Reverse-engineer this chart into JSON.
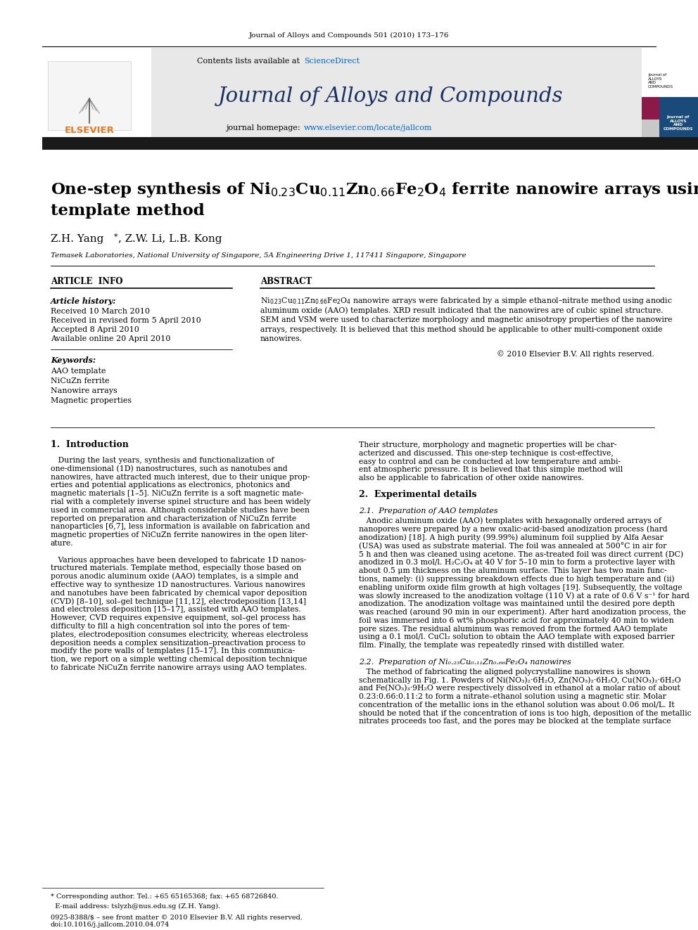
{
  "journal_ref": "Journal of Alloys and Compounds 501 (2010) 173–176",
  "contents_text": "Contents lists available at",
  "sciencedirect": "ScienceDirect",
  "journal_name": "Journal of Alloys and Compounds",
  "journal_homepage_prefix": "journal homepage: ",
  "journal_homepage_link": "www.elsevier.com/locate/jallcom",
  "title_line1": "One-step synthesis of Ni$_{0.23}$Cu$_{0.11}$Zn$_{0.66}$Fe$_{2}$O$_{4}$ ferrite nanowire arrays using a",
  "title_line2": "template method",
  "authors": "Z.H. Yang*, Z.W. Li, L.B. Kong",
  "affiliation": "Temasek Laboratories, National University of Singapore, 5A Engineering Drive 1, 117411 Singapore, Singapore",
  "article_info_header": "ARTICLE  INFO",
  "abstract_header": "ABSTRACT",
  "article_history_label": "Article history:",
  "received1": "Received 10 March 2010",
  "received2": "Received in revised form 5 April 2010",
  "accepted": "Accepted 8 April 2010",
  "available": "Available online 20 April 2010",
  "keywords_label": "Keywords:",
  "keyword1": "AAO template",
  "keyword2": "NiCuZn ferrite",
  "keyword3": "Nanowire arrays",
  "keyword4": "Magnetic properties",
  "copyright": "© 2010 Elsevier B.V. All rights reserved.",
  "section1_header": "1.  Introduction",
  "footer_note1": "* Corresponding author. Tel.: +65 65165368; fax: +65 68726840.",
  "footer_note2": "  E-mail address: tslyzh@nus.edu.sg (Z.H. Yang).",
  "issn": "0925-8388/$ – see front matter © 2010 Elsevier B.V. All rights reserved.",
  "doi": "doi:10.1016/j.jallcom.2010.04.074",
  "bg_color": "#ffffff",
  "header_bg": "#e8e8e8",
  "elsevier_color": "#e87722",
  "sciencedirect_color": "#0066cc",
  "link_color": "#0066cc",
  "text_color": "#000000",
  "dark_bar_color": "#1a1a1a",
  "abstract_lines": [
    "Ni$_{0.23}$Cu$_{0.11}$Zn$_{0.66}$Fe$_2$O$_4$ nanowire arrays were fabricated by a simple ethanol–nitrate method using anodic",
    "aluminum oxide (AAO) templates. XRD result indicated that the nanowires are of cubic spinel structure.",
    "SEM and VSM were used to characterize morphology and magnetic anisotropy properties of the nanowire",
    "arrays, respectively. It is believed that this method should be applicable to other multi-component oxide",
    "nanowires."
  ],
  "col1_text": [
    "   During the last years, synthesis and functionalization of",
    "one-dimensional (1D) nanostructures, such as nanotubes and",
    "nanowires, have attracted much interest, due to their unique prop-",
    "erties and potential applications as electronics, photonics and",
    "magnetic materials [1–5]. NiCuZn ferrite is a soft magnetic mate-",
    "rial with a completely inverse spinel structure and has been widely",
    "used in commercial area. Although considerable studies have been",
    "reported on preparation and characterization of NiCuZn ferrite",
    "nanoparticles [6,7], less information is available on fabrication and",
    "magnetic properties of NiCuZn ferrite nanowires in the open liter-",
    "ature.",
    "",
    "   Various approaches have been developed to fabricate 1D nanos-",
    "tructured materials. Template method, especially those based on",
    "porous anodic aluminum oxide (AAO) templates, is a simple and",
    "effective way to synthesize 1D nanostructures. Various nanowires",
    "and nanotubes have been fabricated by chemical vapor deposition",
    "(CVD) [8–10], sol–gel technique [11,12], electrodeposition [13,14]",
    "and electroless deposition [15–17], assisted with AAO templates.",
    "However, CVD requires expensive equipment, sol–gel process has",
    "difficulty to fill a high concentration sol into the pores of tem-",
    "plates, electrodeposition consumes electricity, whereas electroless",
    "deposition needs a complex sensitization–preactivation process to",
    "modify the pore walls of templates [15–17]. In this communica-",
    "tion, we report on a simple wetting chemical deposition technique",
    "to fabricate NiCuZn ferrite nanowire arrays using AAO templates."
  ],
  "col2_intro": [
    "Their structure, morphology and magnetic properties will be char-",
    "acterized and discussed. This one-step technique is cost-effective,",
    "easy to control and can be conducted at low temperature and ambi-",
    "ent atmospheric pressure. It is believed that this simple method will",
    "also be applicable to fabrication of other oxide nanowires."
  ],
  "section2_header": "2.  Experimental details",
  "section21_header": "2.1.  Preparation of AAO templates",
  "col2_sec21": [
    "   Anodic aluminum oxide (AAO) templates with hexagonally ordered arrays of",
    "nanopores were prepared by a new oxalic-acid-based anodization process (hard",
    "anodization) [18]. A high purity (99.99%) aluminum foil supplied by Alfa Aesar",
    "(USA) was used as substrate material. The foil was annealed at 500°C in air for",
    "5 h and then was cleaned using acetone. The as-treated foil was direct current (DC)",
    "anodized in 0.3 mol/l. H₂C₂O₄ at 40 V for 5–10 min to form a protective layer with",
    "about 0.5 μm thickness on the aluminum surface. This layer has two main func-",
    "tions, namely: (i) suppressing breakdown effects due to high temperature and (ii)",
    "enabling uniform oxide film growth at high voltages [19]. Subsequently, the voltage",
    "was slowly increased to the anodization voltage (110 V) at a rate of 0.6 V s⁻¹ for hard",
    "anodization. The anodization voltage was maintained until the desired pore depth",
    "was reached (around 90 min in our experiment). After hard anodization process, the",
    "foil was immersed into 6 wt% phosphoric acid for approximately 40 min to widen",
    "pore sizes. The residual aluminum was removed from the formed AAO template",
    "using a 0.1 mol/l. CuCl₂ solution to obtain the AAO template with exposed barrier",
    "film. Finally, the template was repeatedly rinsed with distilled water."
  ],
  "section22_header": "2.2.  Preparation of Ni₀.₂₃Cu₀.₁₁Zn₀.₆₆Fe₂O₄ nanowires",
  "col2_sec22": [
    "   The method of fabricating the aligned polycrystalline nanowires is shown",
    "schematically in Fig. 1. Powders of Ni(NO₃)₂·6H₂O, Zn(NO₃)₂·6H₂O, Cu(NO₃)₂·6H₂O",
    "and Fe(NO₃)₃·9H₂O were respectively dissolved in ethanol at a molar ratio of about",
    "0.23:0.66:0.11:2 to form a nitrate–ethanol solution using a magnetic stir. Molar",
    "concentration of the metallic ions in the ethanol solution was about 0.06 mol/L. It",
    "should be noted that if the concentration of ions is too high, deposition of the metallic",
    "nitrates proceeds too fast, and the pores may be blocked at the template surface"
  ]
}
